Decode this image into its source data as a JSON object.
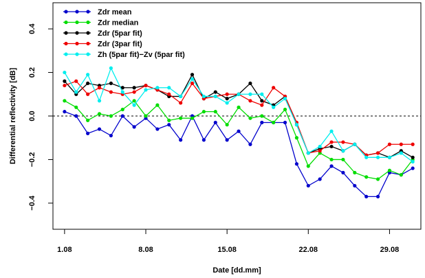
{
  "chart_data": {
    "type": "line",
    "xlabel": "Date [dd.mm]",
    "ylabel": "Differential reflectivity [dB]",
    "x": [
      1,
      2,
      3,
      4,
      5,
      6,
      7,
      8,
      9,
      10,
      11,
      12,
      13,
      14,
      15,
      16,
      17,
      18,
      19,
      20,
      21,
      22,
      23,
      24,
      25,
      26,
      27,
      28,
      29,
      30,
      31
    ],
    "xlim": [
      0,
      31.7
    ],
    "ylim": [
      -0.52,
      0.52
    ],
    "x_ticks": [
      {
        "value": 1,
        "label": "1.08"
      },
      {
        "value": 8,
        "label": "8.08"
      },
      {
        "value": 15,
        "label": "15.08"
      },
      {
        "value": 22,
        "label": "22.08"
      },
      {
        "value": 29,
        "label": "29.08"
      }
    ],
    "y_ticks": [
      {
        "value": -0.4,
        "label": "−0.4"
      },
      {
        "value": -0.2,
        "label": "−0.2"
      },
      {
        "value": 0.0,
        "label": "0.0"
      },
      {
        "value": 0.2,
        "label": "0.2"
      },
      {
        "value": 0.4,
        "label": "0.4"
      }
    ],
    "reference_line": 0.0,
    "legend_position": "top-left",
    "series": [
      {
        "name": "Zdr mean",
        "color": "#0000cc",
        "values": [
          0.02,
          0.0,
          -0.08,
          -0.06,
          -0.09,
          0.0,
          -0.05,
          -0.01,
          -0.06,
          -0.04,
          -0.11,
          0.0,
          -0.11,
          -0.03,
          -0.11,
          -0.07,
          -0.13,
          -0.03,
          -0.03,
          -0.03,
          -0.22,
          -0.32,
          -0.29,
          -0.23,
          -0.26,
          -0.32,
          -0.37,
          -0.37,
          -0.26,
          -0.27,
          -0.24
        ]
      },
      {
        "name": "Zdr median",
        "color": "#00dd00",
        "values": [
          0.07,
          0.04,
          -0.02,
          0.01,
          0.0,
          0.03,
          0.07,
          0.0,
          0.05,
          -0.02,
          -0.01,
          -0.01,
          0.02,
          0.02,
          -0.04,
          0.04,
          -0.01,
          0.0,
          -0.03,
          0.03,
          -0.1,
          -0.23,
          -0.17,
          -0.2,
          -0.2,
          -0.26,
          -0.28,
          -0.29,
          -0.25,
          -0.27,
          -0.2
        ]
      },
      {
        "name": "Zdr (5par fit)",
        "color": "#000000",
        "values": [
          0.16,
          0.1,
          0.15,
          0.14,
          0.15,
          0.13,
          0.13,
          0.14,
          0.12,
          0.09,
          0.09,
          0.19,
          0.08,
          0.11,
          0.08,
          0.1,
          0.15,
          0.07,
          0.05,
          0.09,
          -0.04,
          -0.17,
          -0.15,
          -0.14,
          -0.16,
          -0.13,
          -0.18,
          -0.17,
          -0.19,
          -0.16,
          -0.19
        ]
      },
      {
        "name": "Zdr (3par fit)",
        "color": "#ee0000",
        "values": [
          0.14,
          0.16,
          0.1,
          0.13,
          0.11,
          0.1,
          0.11,
          0.14,
          0.12,
          0.1,
          0.06,
          0.15,
          0.08,
          0.09,
          0.1,
          0.1,
          0.07,
          0.05,
          0.13,
          0.09,
          -0.03,
          -0.17,
          -0.16,
          -0.12,
          -0.12,
          -0.13,
          -0.18,
          -0.17,
          -0.13,
          -0.13,
          -0.13
        ]
      },
      {
        "name": "Zh (5par fit)−Zv (5par fit)",
        "color": "#00eeee",
        "values": [
          0.2,
          0.11,
          0.19,
          0.07,
          0.22,
          0.11,
          0.05,
          0.12,
          0.13,
          0.13,
          0.09,
          0.17,
          0.09,
          0.09,
          0.06,
          0.1,
          0.1,
          0.1,
          0.04,
          0.08,
          -0.04,
          -0.17,
          -0.14,
          -0.07,
          -0.16,
          -0.13,
          -0.19,
          -0.19,
          -0.19,
          -0.17,
          -0.21
        ]
      }
    ]
  }
}
